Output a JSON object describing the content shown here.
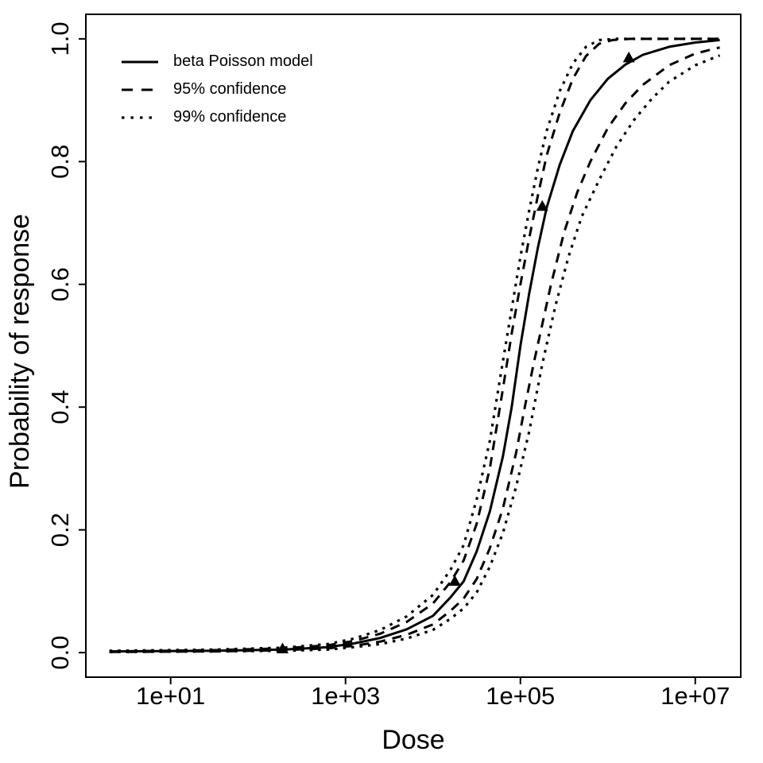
{
  "colors": {
    "foreground": "#000000",
    "background": "#ffffff"
  },
  "chart_data": {
    "type": "line",
    "title": "",
    "xlabel": "Dose",
    "ylabel": "Probability of response",
    "x_scale": "log10",
    "grid": false,
    "legend_position": "top-left",
    "x_axis": {
      "range_log10": [
        0.03,
        7.52
      ],
      "ticks": [
        {
          "label": "1e+01",
          "log10": 1
        },
        {
          "label": "1e+03",
          "log10": 3
        },
        {
          "label": "1e+05",
          "log10": 5
        },
        {
          "label": "1e+07",
          "log10": 7
        }
      ]
    },
    "y_axis": {
      "range": [
        -0.04,
        1.04
      ],
      "ticks": [
        {
          "label": "0.0",
          "value": 0.0
        },
        {
          "label": "0.2",
          "value": 0.2
        },
        {
          "label": "0.4",
          "value": 0.4
        },
        {
          "label": "0.6",
          "value": 0.6
        },
        {
          "label": "0.8",
          "value": 0.8
        },
        {
          "label": "1.0",
          "value": 1.0
        }
      ]
    },
    "legend": [
      {
        "label": "beta Poisson model",
        "style": "solid"
      },
      {
        "label": "95% confidence",
        "style": "dashed"
      },
      {
        "label": "99% confidence",
        "style": "dotted"
      }
    ],
    "series": [
      {
        "id": "beta-poisson",
        "name": "beta Poisson model",
        "style": "solid",
        "points": [
          [
            0.3,
            0.002
          ],
          [
            1.5,
            0.003
          ],
          [
            2.3,
            0.005
          ],
          [
            2.8,
            0.009
          ],
          [
            3.1,
            0.015
          ],
          [
            3.4,
            0.024
          ],
          [
            3.7,
            0.038
          ],
          [
            4.0,
            0.06
          ],
          [
            4.2,
            0.09
          ],
          [
            4.35,
            0.116
          ],
          [
            4.5,
            0.165
          ],
          [
            4.65,
            0.23
          ],
          [
            4.8,
            0.32
          ],
          [
            4.9,
            0.4
          ],
          [
            5.0,
            0.5
          ],
          [
            5.1,
            0.585
          ],
          [
            5.2,
            0.66
          ],
          [
            5.3,
            0.725
          ],
          [
            5.45,
            0.795
          ],
          [
            5.6,
            0.85
          ],
          [
            5.8,
            0.9
          ],
          [
            6.0,
            0.935
          ],
          [
            6.2,
            0.958
          ],
          [
            6.4,
            0.974
          ],
          [
            6.7,
            0.987
          ],
          [
            7.0,
            0.994
          ],
          [
            7.28,
            0.998
          ]
        ]
      },
      {
        "id": "ci95-upper",
        "name": "95% confidence upper",
        "style": "dashed",
        "points": [
          [
            0.3,
            0.002
          ],
          [
            1.5,
            0.004
          ],
          [
            2.3,
            0.007
          ],
          [
            2.8,
            0.012
          ],
          [
            3.1,
            0.019
          ],
          [
            3.4,
            0.031
          ],
          [
            3.7,
            0.05
          ],
          [
            4.0,
            0.08
          ],
          [
            4.2,
            0.115
          ],
          [
            4.35,
            0.15
          ],
          [
            4.5,
            0.21
          ],
          [
            4.65,
            0.3
          ],
          [
            4.8,
            0.43
          ],
          [
            4.9,
            0.52
          ],
          [
            5.0,
            0.6
          ],
          [
            5.1,
            0.675
          ],
          [
            5.2,
            0.745
          ],
          [
            5.3,
            0.81
          ],
          [
            5.45,
            0.88
          ],
          [
            5.6,
            0.935
          ],
          [
            5.75,
            0.972
          ],
          [
            5.9,
            0.992
          ],
          [
            6.05,
            0.998
          ],
          [
            6.25,
            1.0
          ],
          [
            7.28,
            1.0
          ]
        ]
      },
      {
        "id": "ci95-lower",
        "name": "95% confidence lower",
        "style": "dashed",
        "points": [
          [
            0.3,
            0.001
          ],
          [
            1.5,
            0.002
          ],
          [
            2.3,
            0.004
          ],
          [
            2.8,
            0.007
          ],
          [
            3.1,
            0.011
          ],
          [
            3.4,
            0.018
          ],
          [
            3.7,
            0.029
          ],
          [
            4.0,
            0.046
          ],
          [
            4.2,
            0.068
          ],
          [
            4.35,
            0.088
          ],
          [
            4.5,
            0.12
          ],
          [
            4.65,
            0.17
          ],
          [
            4.8,
            0.235
          ],
          [
            4.95,
            0.325
          ],
          [
            5.05,
            0.4
          ],
          [
            5.15,
            0.47
          ],
          [
            5.25,
            0.535
          ],
          [
            5.35,
            0.6
          ],
          [
            5.5,
            0.685
          ],
          [
            5.65,
            0.75
          ],
          [
            5.8,
            0.8
          ],
          [
            6.0,
            0.855
          ],
          [
            6.2,
            0.895
          ],
          [
            6.4,
            0.925
          ],
          [
            6.7,
            0.957
          ],
          [
            7.0,
            0.976
          ],
          [
            7.28,
            0.986
          ]
        ]
      },
      {
        "id": "ci99-upper",
        "name": "99% confidence upper",
        "style": "dotted",
        "points": [
          [
            0.3,
            0.003
          ],
          [
            1.5,
            0.005
          ],
          [
            2.3,
            0.008
          ],
          [
            2.8,
            0.014
          ],
          [
            3.1,
            0.023
          ],
          [
            3.4,
            0.037
          ],
          [
            3.7,
            0.059
          ],
          [
            4.0,
            0.094
          ],
          [
            4.2,
            0.135
          ],
          [
            4.35,
            0.175
          ],
          [
            4.5,
            0.25
          ],
          [
            4.65,
            0.345
          ],
          [
            4.8,
            0.475
          ],
          [
            4.9,
            0.56
          ],
          [
            5.0,
            0.645
          ],
          [
            5.1,
            0.72
          ],
          [
            5.2,
            0.79
          ],
          [
            5.3,
            0.85
          ],
          [
            5.45,
            0.915
          ],
          [
            5.6,
            0.96
          ],
          [
            5.75,
            0.987
          ],
          [
            5.9,
            0.998
          ],
          [
            6.1,
            1.0
          ],
          [
            7.28,
            1.0
          ]
        ]
      },
      {
        "id": "ci99-lower",
        "name": "99% confidence lower",
        "style": "dotted",
        "points": [
          [
            0.3,
            0.001
          ],
          [
            1.5,
            0.002
          ],
          [
            2.3,
            0.003
          ],
          [
            2.8,
            0.005
          ],
          [
            3.1,
            0.009
          ],
          [
            3.4,
            0.014
          ],
          [
            3.7,
            0.023
          ],
          [
            4.0,
            0.037
          ],
          [
            4.2,
            0.055
          ],
          [
            4.35,
            0.072
          ],
          [
            4.5,
            0.098
          ],
          [
            4.65,
            0.14
          ],
          [
            4.8,
            0.195
          ],
          [
            4.95,
            0.27
          ],
          [
            5.1,
            0.36
          ],
          [
            5.25,
            0.47
          ],
          [
            5.4,
            0.565
          ],
          [
            5.55,
            0.645
          ],
          [
            5.7,
            0.71
          ],
          [
            5.9,
            0.77
          ],
          [
            6.1,
            0.825
          ],
          [
            6.3,
            0.868
          ],
          [
            6.5,
            0.902
          ],
          [
            6.7,
            0.93
          ],
          [
            7.0,
            0.957
          ],
          [
            7.28,
            0.973
          ]
        ]
      }
    ],
    "observed_points": {
      "marker": "filled-triangle-up",
      "points": [
        {
          "log10_dose": 2.28,
          "dose": 190,
          "p": 0.006
        },
        {
          "log10_dose": 4.25,
          "dose": 18000,
          "p": 0.116
        },
        {
          "log10_dose": 5.25,
          "dose": 180000,
          "p": 0.727
        },
        {
          "log10_dose": 6.24,
          "dose": 1700000,
          "p": 0.969
        }
      ]
    }
  }
}
